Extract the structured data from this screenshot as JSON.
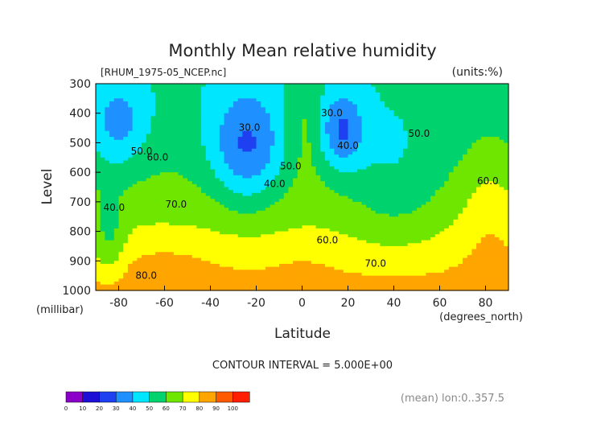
{
  "chart_data": {
    "type": "heatmap",
    "title": "Monthly Mean relative humidity",
    "source": "[RHUM_1975-05_NCEP.nc]",
    "units": "(units:%)",
    "xlabel": "Latitude",
    "x_units": "(degrees_north)",
    "ylabel": "Level",
    "y_units": "(millibar)",
    "x_ticks": [
      "-80",
      "-60",
      "-40",
      "-20",
      "0",
      "20",
      "40",
      "60",
      "80"
    ],
    "y_ticks": [
      "300",
      "400",
      "500",
      "600",
      "700",
      "800",
      "900",
      "1000"
    ],
    "xlim": [
      -90,
      90
    ],
    "ylim": [
      1000,
      300
    ],
    "contour_interval": "CONTOUR INTERVAL = 5.000E+00",
    "contour_interval_value": 5,
    "averaging": "(mean) lon:0..357.5",
    "colorbar": {
      "labels": [
        "0",
        "10",
        "20",
        "30",
        "40",
        "50",
        "60",
        "70",
        "80",
        "90",
        "100"
      ],
      "colors": [
        "#8b00c8",
        "#1e0fd7",
        "#1e40f0",
        "#1e90ff",
        "#00e6ff",
        "#00d26e",
        "#6ee600",
        "#ffff00",
        "#ffa500",
        "#ff5a00",
        "#ff1e00"
      ]
    },
    "contour_labels": [
      {
        "text": "30.0",
        "lat": -23,
        "level": 460
      },
      {
        "text": "30.0",
        "lat": 13,
        "level": 410
      },
      {
        "text": "40.0",
        "lat": 20,
        "level": 520
      },
      {
        "text": "50.0",
        "lat": 51,
        "level": 480
      },
      {
        "text": "50.0",
        "lat": -70,
        "level": 540
      },
      {
        "text": "60.0",
        "lat": -63,
        "level": 560
      },
      {
        "text": "60.0",
        "lat": 81,
        "level": 640
      },
      {
        "text": "40.0",
        "lat": -82,
        "level": 730
      },
      {
        "text": "70.0",
        "lat": -55,
        "level": 720
      },
      {
        "text": "40.0",
        "lat": -12,
        "level": 650
      },
      {
        "text": "50.0",
        "lat": -5,
        "level": 590
      },
      {
        "text": "60.0",
        "lat": 11,
        "level": 840
      },
      {
        "text": "70.0",
        "lat": 32,
        "level": 920
      },
      {
        "text": "80.0",
        "lat": -68,
        "level": 960
      }
    ],
    "grid": false,
    "legend": "colorbar bottom-left"
  }
}
